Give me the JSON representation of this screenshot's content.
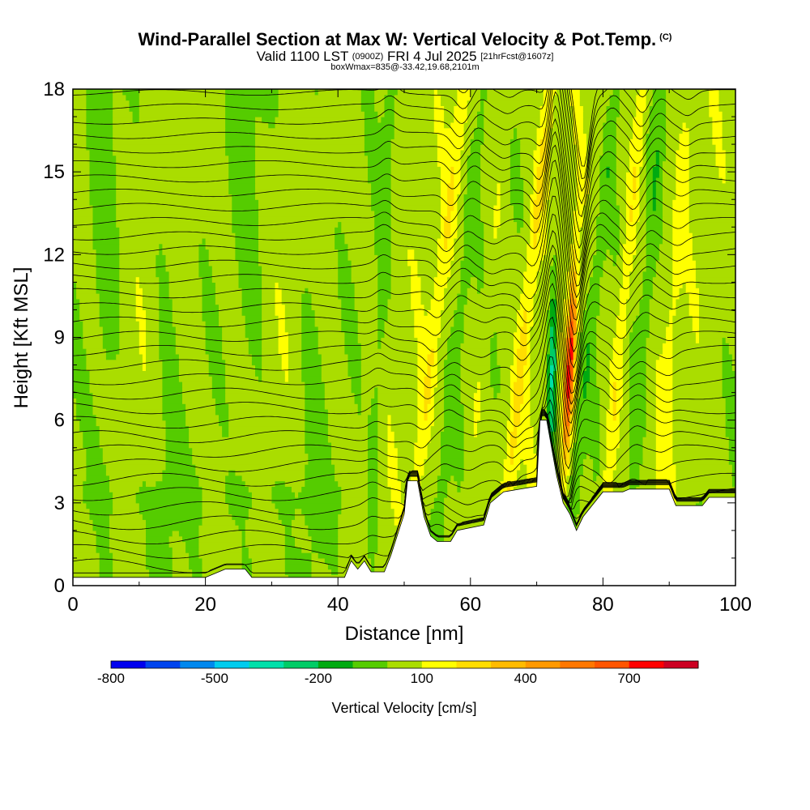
{
  "title": {
    "main": "Wind-Parallel Section at Max W: Vertical Velocity & Pot.Temp.",
    "copyright": "(C)",
    "valid_prefix": "Valid 1100 LST",
    "valid_utc": "(0900Z)",
    "valid_date": "FRI 4 Jul 2025",
    "forecast": "[21hrFcst@1607z]",
    "box_info": "boxWmax=835@-33.42,19.68,2101m"
  },
  "chart_data": {
    "type": "heatmap",
    "xlabel": "Distance [nm]",
    "ylabel": "Height [Kft MSL]",
    "xlim": [
      0,
      100
    ],
    "ylim": [
      0,
      18
    ],
    "x_ticks": [
      0,
      20,
      40,
      60,
      80,
      100
    ],
    "y_ticks": [
      0,
      3,
      6,
      9,
      12,
      15,
      18
    ],
    "colorbar": {
      "label": "Vertical Velocity [cm/s]",
      "tick_labels": [
        "-800",
        "-500",
        "-200",
        "100",
        "400",
        "700"
      ],
      "tick_values": [
        -800,
        -500,
        -200,
        100,
        400,
        700
      ],
      "levels": [
        -800,
        -700,
        -600,
        -500,
        -400,
        -300,
        -200,
        -100,
        0,
        100,
        200,
        300,
        400,
        500,
        600,
        700,
        800,
        900
      ],
      "colors": [
        "#0000ee",
        "#0044ee",
        "#0088ee",
        "#00ccee",
        "#00e0aa",
        "#00cc66",
        "#00aa11",
        "#55cc00",
        "#aadd00",
        "#ffff00",
        "#ffdd00",
        "#ffbb00",
        "#ff9900",
        "#ff7700",
        "#ff5500",
        "#ff0000",
        "#cc0022"
      ]
    },
    "max_w": 835,
    "terrain_kft": [
      [
        0,
        0.3
      ],
      [
        20,
        0.3
      ],
      [
        23,
        0.6
      ],
      [
        26,
        0.6
      ],
      [
        27,
        0.3
      ],
      [
        41,
        0.3
      ],
      [
        42,
        0.9
      ],
      [
        43,
        0.6
      ],
      [
        44,
        0.9
      ],
      [
        45,
        0.5
      ],
      [
        47,
        0.5
      ],
      [
        48,
        1.1
      ],
      [
        50,
        2.6
      ],
      [
        50.5,
        3.8
      ],
      [
        52,
        3.8
      ],
      [
        53,
        2.5
      ],
      [
        54,
        1.8
      ],
      [
        55,
        1.6
      ],
      [
        57,
        1.6
      ],
      [
        58,
        2.0
      ],
      [
        62,
        2.2
      ],
      [
        63,
        3.0
      ],
      [
        65,
        3.4
      ],
      [
        70,
        3.6
      ],
      [
        70.5,
        6.0
      ],
      [
        71.5,
        6.0
      ],
      [
        73,
        4.0
      ],
      [
        74,
        3.0
      ],
      [
        75,
        2.6
      ],
      [
        76,
        2.0
      ],
      [
        77,
        2.5
      ],
      [
        80,
        3.4
      ],
      [
        83,
        3.4
      ],
      [
        84,
        3.5
      ],
      [
        90,
        3.5
      ],
      [
        91,
        2.9
      ],
      [
        95,
        2.9
      ],
      [
        96,
        3.2
      ],
      [
        99,
        3.2
      ],
      [
        100,
        3.2
      ]
    ],
    "w_features": [
      {
        "x_base": 51,
        "x_top": 59,
        "sign": 1,
        "strength": 130
      },
      {
        "x_base": 55,
        "x_top": 62,
        "sign": -1,
        "strength": 90
      },
      {
        "x_base": 59,
        "x_top": 66,
        "sign": 1,
        "strength": 60
      },
      {
        "x_base": 65,
        "x_top": 72,
        "sign": 1,
        "strength": 170
      },
      {
        "x_base": 72,
        "x_top": 73,
        "sign": -1,
        "strength": 380
      },
      {
        "x_base": 73.8,
        "x_top": 77,
        "sign": 1,
        "strength": 700
      },
      {
        "x_base": 75,
        "x_top": 82,
        "sign": -1,
        "strength": 110
      },
      {
        "x_base": 80,
        "x_top": 86,
        "sign": 1,
        "strength": 160
      },
      {
        "x_base": 84,
        "x_top": 89,
        "sign": -1,
        "strength": 100
      },
      {
        "x_base": 88,
        "x_top": 93,
        "sign": 1,
        "strength": 70
      },
      {
        "x_base": 45,
        "x_top": 48,
        "sign": -1,
        "strength": 80
      }
    ]
  }
}
